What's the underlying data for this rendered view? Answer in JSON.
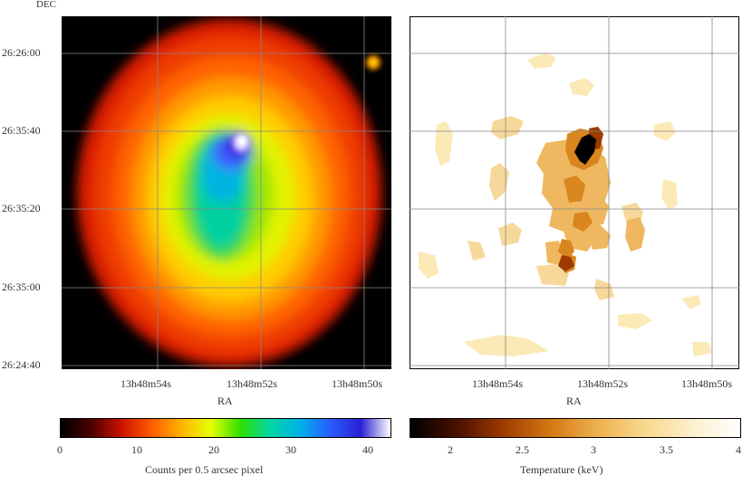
{
  "axes": {
    "dec_label": "DEC",
    "ra_label": "RA",
    "dec_ticks": [
      "26:26:00",
      "26:35:40",
      "26:35:20",
      "26:35:00",
      "26:24:40"
    ],
    "ra_ticks": [
      "13h48m54s",
      "13h48m52s",
      "13h48m50s"
    ]
  },
  "colorbars": {
    "counts": {
      "label": "Counts per 0.5 arcsec pixel",
      "ticks": [
        "0",
        "10",
        "20",
        "30",
        "40"
      ],
      "tick_values": [
        0,
        10,
        20,
        30,
        40
      ],
      "range": [
        0,
        43
      ],
      "stops": [
        "#000000",
        "#4a0000",
        "#c81000",
        "#ff5a00",
        "#ffb000",
        "#e6ff00",
        "#30e000",
        "#00d6a6",
        "#00b0e8",
        "#2a5cff",
        "#2a1fd2",
        "#ffffff"
      ]
    },
    "temperature": {
      "label": "Temperature (keV)",
      "ticks": [
        "2",
        "2.5",
        "3",
        "3.5",
        "4"
      ],
      "tick_values": [
        2,
        2.5,
        3,
        3.5,
        4
      ],
      "range": [
        1.75,
        4.0
      ],
      "stops": [
        "#000000",
        "#4a1000",
        "#a03c00",
        "#d67a14",
        "#eeb250",
        "#f9d98e",
        "#fdf0cf",
        "#ffffff"
      ]
    }
  }
}
